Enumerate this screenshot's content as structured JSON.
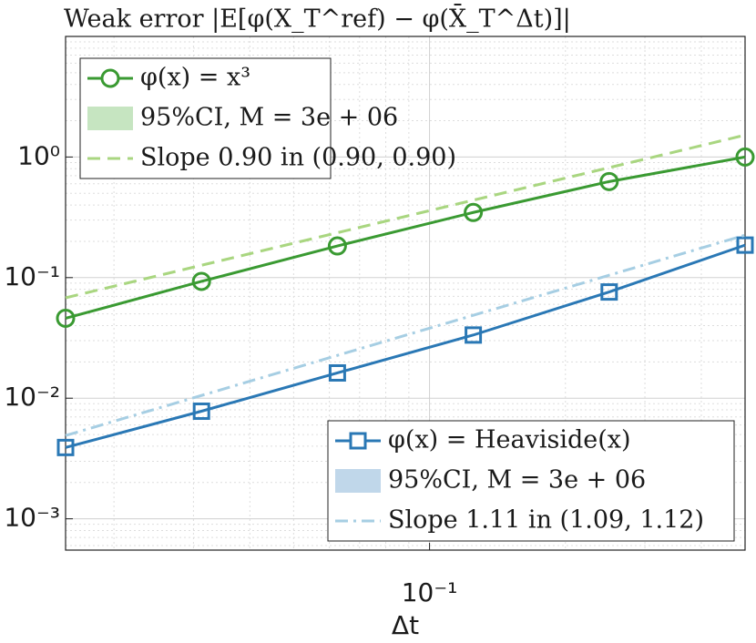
{
  "chart_data": {
    "type": "line",
    "log_x": true,
    "log_y": true,
    "grid": true,
    "minor_grid": true,
    "title": "Weak error |E[φ(X_T^ref) − φ(X̄_T^Δt)]|",
    "xlabel": "Δt",
    "x": [
      0.015625,
      0.03125,
      0.0625,
      0.125,
      0.25,
      0.5
    ],
    "xlim": [
      0.015625,
      0.5
    ],
    "xticks": [
      {
        "value": 0.1,
        "label": "10⁻¹"
      }
    ],
    "ylim": [
      0.00055,
      10
    ],
    "yticks": [
      {
        "value": 0.001,
        "label": "10⁻³"
      },
      {
        "value": 0.01,
        "label": "10⁻²"
      },
      {
        "value": 0.1,
        "label": "10⁻¹"
      },
      {
        "value": 1,
        "label": "10⁰"
      }
    ],
    "series": [
      {
        "name": "φ(x) = x³",
        "color": "#3a9a32",
        "marker": "circle",
        "style": "solid",
        "legend": "upper left",
        "ci_name": "95%CI, M = 3e + 06",
        "ci_color": "#c6e5c1",
        "values": [
          0.046,
          0.093,
          0.183,
          0.347,
          0.626,
          1.0
        ]
      },
      {
        "name": "Slope 0.90 in (0.90, 0.90)",
        "color": "#a9d680",
        "style": "dashed",
        "legend": "upper left",
        "values": [
          0.068,
          null,
          null,
          null,
          null,
          1.52
        ]
      },
      {
        "name": "φ(x) = Heaviside(x)",
        "color": "#2a78b5",
        "marker": "square",
        "style": "solid",
        "legend": "lower right",
        "ci_name": "95%CI, M = 3e + 06",
        "ci_color": "#c0d7ea",
        "values": [
          0.0039,
          0.0078,
          0.0162,
          0.0334,
          0.076,
          0.186
        ]
      },
      {
        "name": "Slope 1.11 in (1.09, 1.12)",
        "color": "#a6cee3",
        "style": "dashdot",
        "legend": "lower right",
        "values": [
          0.0049,
          null,
          null,
          null,
          null,
          0.225
        ]
      }
    ]
  }
}
